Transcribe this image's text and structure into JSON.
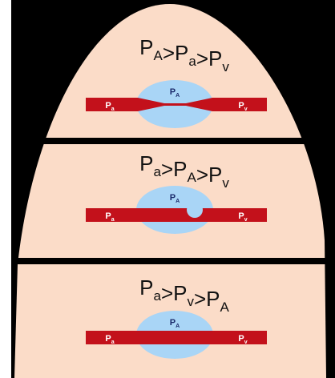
{
  "zones": [
    {
      "formula": {
        "terms": [
          {
            "base": "P",
            "sub": "A"
          },
          {
            "base": "P",
            "sub": "a"
          },
          {
            "base": "P",
            "sub": "v"
          }
        ],
        "relation": ">"
      },
      "alveolus": {
        "base": "P",
        "sub": "A"
      },
      "artery": {
        "base": "P",
        "sub": "a"
      },
      "vein": {
        "base": "P",
        "sub": "v"
      }
    },
    {
      "formula": {
        "terms": [
          {
            "base": "P",
            "sub": "a"
          },
          {
            "base": "P",
            "sub": "A"
          },
          {
            "base": "P",
            "sub": "v"
          }
        ],
        "relation": ">"
      },
      "alveolus": {
        "base": "P",
        "sub": "A"
      },
      "artery": {
        "base": "P",
        "sub": "a"
      },
      "vein": {
        "base": "P",
        "sub": "v"
      }
    },
    {
      "formula": {
        "terms": [
          {
            "base": "P",
            "sub": "a"
          },
          {
            "base": "P",
            "sub": "v"
          },
          {
            "base": "P",
            "sub": "A"
          }
        ],
        "relation": ">"
      },
      "alveolus": {
        "base": "P",
        "sub": "A"
      },
      "artery": {
        "base": "P",
        "sub": "a"
      },
      "vein": {
        "base": "P",
        "sub": "v"
      }
    }
  ]
}
